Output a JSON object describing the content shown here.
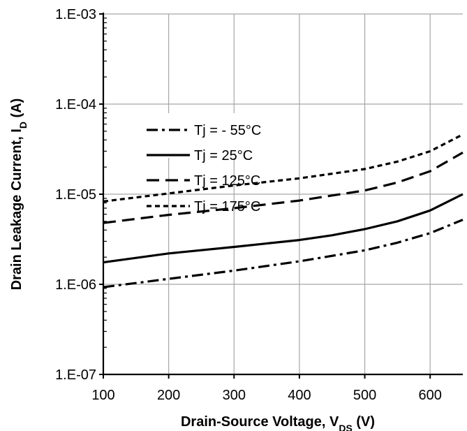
{
  "chart_data": {
    "type": "line",
    "title": "",
    "xlabel": "Drain-Source Voltage, V",
    "xlabel_sub": "DS",
    "xlabel_unit": " (V)",
    "ylabel": "Drain Leakage Current, I",
    "ylabel_sub": "D",
    "ylabel_unit": " (A)",
    "xlim": [
      100,
      650
    ],
    "ylim": [
      1e-07,
      0.001
    ],
    "yscale": "log",
    "grid": true,
    "legend_position": "top-left",
    "x_ticks": [
      100,
      200,
      300,
      400,
      500,
      600
    ],
    "x_tick_labels": [
      "100",
      "200",
      "300",
      "400",
      "500",
      "600"
    ],
    "y_ticks": [
      1e-07,
      1e-06,
      1e-05,
      0.0001,
      0.001
    ],
    "y_tick_labels": [
      "1.E-07",
      "1.E-06",
      "1.E-05",
      "1.E-04",
      "1.E-03"
    ],
    "series": [
      {
        "name": "Tj = - 55°C",
        "style": "dashdot",
        "x": [
          100,
          200,
          300,
          400,
          500,
          550,
          600,
          650
        ],
        "y": [
          9.3e-07,
          1.15e-06,
          1.42e-06,
          1.8e-06,
          2.38e-06,
          2.9e-06,
          3.7e-06,
          5.2e-06
        ]
      },
      {
        "name": "Tj =  25°C",
        "style": "solid",
        "x": [
          100,
          200,
          300,
          400,
          450,
          500,
          550,
          600,
          650
        ],
        "y": [
          1.75e-06,
          2.2e-06,
          2.6e-06,
          3.1e-06,
          3.5e-06,
          4.1e-06,
          5e-06,
          6.6e-06,
          1e-05
        ]
      },
      {
        "name": "Tj = 125°C",
        "style": "dashed",
        "x": [
          100,
          200,
          300,
          400,
          500,
          550,
          600,
          650
        ],
        "y": [
          4.8e-06,
          5.9e-06,
          7e-06,
          8.5e-06,
          1.1e-05,
          1.35e-05,
          1.8e-05,
          2.9e-05
        ]
      },
      {
        "name": "Tj = 175°C",
        "style": "dotted",
        "x": [
          100,
          200,
          300,
          400,
          500,
          550,
          600,
          650
        ],
        "y": [
          8.3e-06,
          1.02e-05,
          1.25e-05,
          1.5e-05,
          1.9e-05,
          2.3e-05,
          3e-05,
          4.6e-05
        ]
      }
    ]
  }
}
